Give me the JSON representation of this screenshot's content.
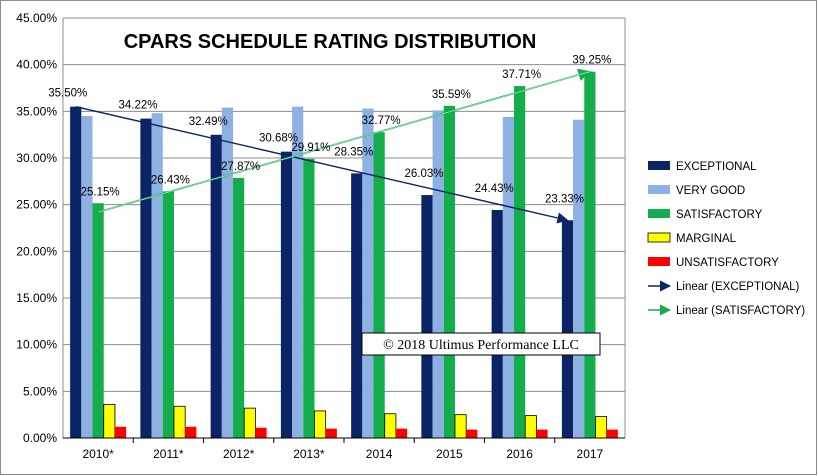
{
  "chart_data": {
    "type": "bar",
    "title": "CPARS SCHEDULE RATING DISTRIBUTION",
    "xlabel": "",
    "ylabel": "",
    "categories": [
      "2010*",
      "2011*",
      "2012*",
      "2013*",
      "2014",
      "2015",
      "2016",
      "2017"
    ],
    "ylim": [
      0,
      45
    ],
    "yticks": [
      0,
      5,
      10,
      15,
      20,
      25,
      30,
      35,
      40,
      45
    ],
    "ytick_format": "%.2f%",
    "grid": true,
    "legend_position": "right",
    "series": [
      {
        "name": "EXCEPTIONAL",
        "color": "#0a2466",
        "values": [
          35.5,
          34.22,
          32.49,
          30.68,
          28.35,
          26.03,
          24.43,
          23.33
        ],
        "data_labels": [
          "35.50%",
          "34.22%",
          "32.49%",
          "30.68%",
          "28.35%",
          "26.03%",
          "24.43%",
          "23.33%"
        ]
      },
      {
        "name": "VERY GOOD",
        "color": "#8eb1e3",
        "values": [
          34.5,
          34.8,
          35.4,
          35.5,
          35.3,
          35.1,
          34.4,
          34.1
        ]
      },
      {
        "name": "SATISFACTORY",
        "color": "#14ad4c",
        "values": [
          25.15,
          26.43,
          27.87,
          29.91,
          32.77,
          35.59,
          37.71,
          39.25
        ],
        "data_labels": [
          "25.15%",
          "26.43%",
          "27.87%",
          "29.91%",
          "32.77%",
          "35.59%",
          "37.71%",
          "39.25%"
        ]
      },
      {
        "name": "MARGINAL",
        "color": "#ffff00",
        "values": [
          3.6,
          3.4,
          3.2,
          2.9,
          2.6,
          2.5,
          2.4,
          2.3
        ]
      },
      {
        "name": "UNSATISFACTORY",
        "color": "#ff0000",
        "values": [
          1.2,
          1.2,
          1.1,
          1.0,
          1.0,
          0.9,
          0.9,
          0.9
        ]
      }
    ],
    "trendlines": [
      {
        "name": "Linear (EXCEPTIONAL)",
        "series": "EXCEPTIONAL",
        "color": "#0a2466",
        "start": 35.5,
        "end": 23.33
      },
      {
        "name": "Linear (SATISFACTORY)",
        "series": "SATISFACTORY",
        "color": "#14ad4c",
        "start": 24.2,
        "end": 39.25
      }
    ],
    "annotations": [
      {
        "text": "© 2018 Ultimus Performance LLC"
      }
    ]
  }
}
